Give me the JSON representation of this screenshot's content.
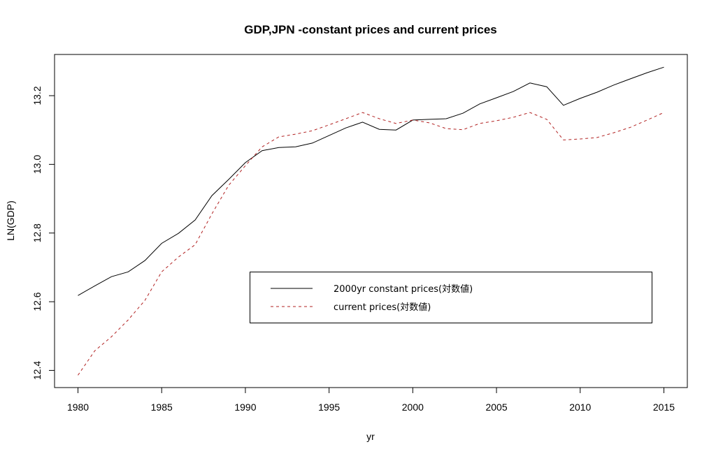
{
  "chart_data": {
    "type": "line",
    "title": "GDP,JPN -constant prices and current prices",
    "xlabel": "yr",
    "ylabel": "LN(GDP)",
    "xlim": [
      1978.6,
      2016.4
    ],
    "ylim": [
      12.35,
      13.32
    ],
    "xticks": [
      1980,
      1985,
      1990,
      1995,
      2000,
      2005,
      2010,
      2015
    ],
    "xtick_labels": [
      "1980",
      "1985",
      "1990",
      "1995",
      "2000",
      "2005",
      "2010",
      "2015"
    ],
    "yticks": [
      12.4,
      12.6,
      12.8,
      13.0,
      13.2
    ],
    "ytick_labels": [
      "12.4",
      "12.6",
      "12.8",
      "13.0",
      "13.2"
    ],
    "grid": false,
    "legend_position": "bottom-right",
    "x": [
      1980,
      1981,
      1982,
      1983,
      1984,
      1985,
      1986,
      1987,
      1988,
      1989,
      1990,
      1991,
      1992,
      1993,
      1994,
      1995,
      1996,
      1997,
      1998,
      1999,
      2000,
      2001,
      2002,
      2003,
      2004,
      2005,
      2006,
      2007,
      2008,
      2009,
      2010,
      2011,
      2012,
      2013,
      2014,
      2015
    ],
    "series": [
      {
        "name": "2000yr constant prices(対数値)",
        "color": "#000000",
        "style": "solid",
        "values": [
          12.618,
          12.646,
          12.673,
          12.687,
          12.72,
          12.77,
          12.799,
          12.838,
          12.909,
          12.956,
          13.005,
          13.04,
          13.049,
          13.051,
          13.062,
          13.084,
          13.106,
          13.123,
          13.102,
          13.1,
          13.129,
          13.131,
          13.133,
          13.149,
          13.176,
          13.194,
          13.212,
          13.237,
          13.226,
          13.172,
          13.192,
          13.21,
          13.231,
          13.249,
          13.267,
          13.283
        ]
      },
      {
        "name": "current prices(対数値)",
        "color": "#b22222",
        "style": "dashed",
        "values": [
          12.386,
          12.457,
          12.498,
          12.547,
          12.604,
          12.687,
          12.73,
          12.766,
          12.856,
          12.939,
          12.996,
          13.051,
          13.08,
          13.088,
          13.098,
          13.115,
          13.133,
          13.151,
          13.133,
          13.119,
          13.129,
          13.121,
          13.104,
          13.101,
          13.119,
          13.127,
          13.137,
          13.151,
          13.131,
          13.071,
          13.074,
          13.078,
          13.092,
          13.108,
          13.129,
          13.151
        ]
      }
    ]
  }
}
